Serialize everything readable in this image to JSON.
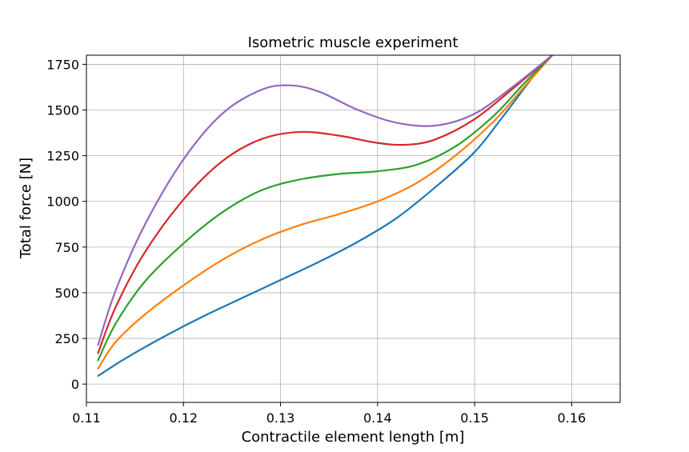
{
  "chart_data": {
    "type": "line",
    "title": "Isometric muscle experiment",
    "xlabel": "Contractile element length [m]",
    "ylabel": "Total force [N]",
    "xlim": [
      0.11,
      0.165
    ],
    "ylim": [
      -100,
      1800
    ],
    "xticks": [
      0.11,
      0.12,
      0.13,
      0.14,
      0.15,
      0.16
    ],
    "xtick_labels": [
      "0.11",
      "0.12",
      "0.13",
      "0.14",
      "0.15",
      "0.16"
    ],
    "yticks": [
      0,
      250,
      500,
      750,
      1000,
      1250,
      1500,
      1750
    ],
    "ytick_labels": [
      "0",
      "250",
      "500",
      "750",
      "1000",
      "1250",
      "1500",
      "1750"
    ],
    "grid": true,
    "legend": "none",
    "series": [
      {
        "color": "#1f77b4",
        "x": [
          0.1112,
          0.114,
          0.118,
          0.122,
          0.126,
          0.13,
          0.134,
          0.138,
          0.142,
          0.146,
          0.15,
          0.153,
          0.156,
          0.158
        ],
        "y": [
          45,
          140,
          260,
          370,
          470,
          570,
          670,
          780,
          910,
          1080,
          1270,
          1470,
          1680,
          1800
        ]
      },
      {
        "color": "#ff7f0e",
        "x": [
          0.1112,
          0.113,
          0.116,
          0.12,
          0.124,
          0.128,
          0.132,
          0.136,
          0.14,
          0.144,
          0.148,
          0.152,
          0.155,
          0.158
        ],
        "y": [
          85,
          230,
          380,
          540,
          680,
          790,
          870,
          930,
          1000,
          1100,
          1250,
          1440,
          1620,
          1800
        ]
      },
      {
        "color": "#2ca02c",
        "x": [
          0.1112,
          0.113,
          0.116,
          0.12,
          0.124,
          0.128,
          0.132,
          0.136,
          0.14,
          0.144,
          0.148,
          0.152,
          0.155,
          0.158
        ],
        "y": [
          130,
          330,
          560,
          770,
          940,
          1060,
          1120,
          1150,
          1165,
          1200,
          1300,
          1470,
          1640,
          1800
        ]
      },
      {
        "color": "#d62728",
        "x": [
          0.1112,
          0.113,
          0.116,
          0.12,
          0.124,
          0.128,
          0.132,
          0.136,
          0.14,
          0.143,
          0.146,
          0.15,
          0.154,
          0.158
        ],
        "y": [
          170,
          420,
          720,
          1010,
          1220,
          1340,
          1380,
          1360,
          1320,
          1310,
          1340,
          1450,
          1620,
          1800
        ]
      },
      {
        "color": "#9467bd",
        "x": [
          0.1112,
          0.113,
          0.116,
          0.12,
          0.124,
          0.128,
          0.131,
          0.134,
          0.138,
          0.142,
          0.146,
          0.15,
          0.154,
          0.158
        ],
        "y": [
          215,
          510,
          870,
          1230,
          1480,
          1610,
          1635,
          1600,
          1500,
          1430,
          1415,
          1480,
          1630,
          1800
        ]
      }
    ]
  }
}
